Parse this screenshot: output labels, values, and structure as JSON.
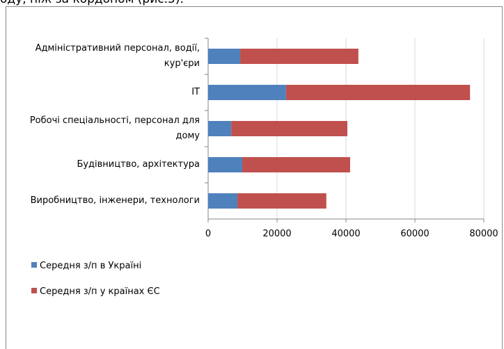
{
  "document_text": "оду, ніж за кордоном (рис.5).",
  "chart_data": {
    "type": "stacked_barh",
    "categories": [
      "Адміністративний персонал, водії, кур'єри",
      "IT",
      "Робочі спеціальності, персонал для дому",
      "Будівництво, архітектура",
      "Виробництво, інженери, технологи"
    ],
    "series": [
      {
        "name": "Середня з/п в Україні",
        "color": "#4f81bd",
        "values": [
          9300,
          22600,
          6700,
          9900,
          8500
        ]
      },
      {
        "name": "Середня з/п у країнах ЄС",
        "color": "#c0504d",
        "values": [
          34300,
          53400,
          33700,
          31300,
          25800
        ]
      }
    ],
    "xlim": [
      0,
      80000
    ],
    "xticks": [
      0,
      20000,
      40000,
      60000,
      80000
    ],
    "grid": true,
    "legend": "bottom-left"
  }
}
